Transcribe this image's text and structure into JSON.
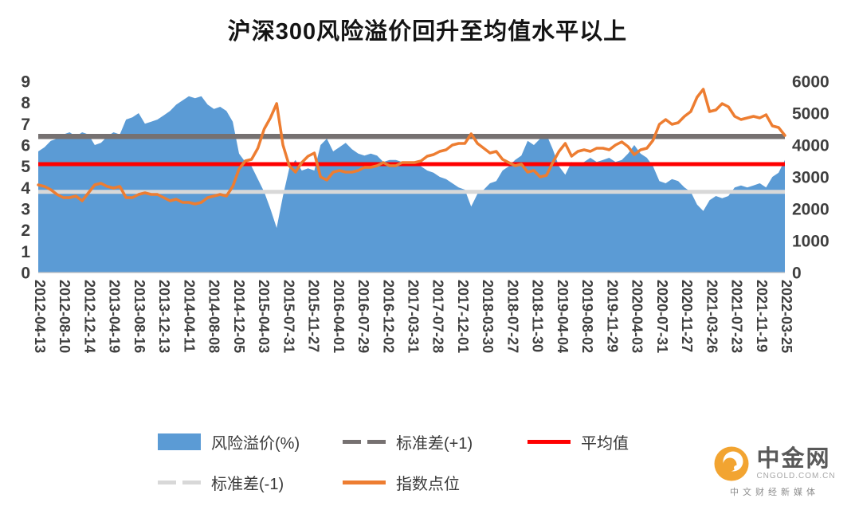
{
  "page": {
    "title": "沪深300风险溢价回升至均值水平以上"
  },
  "chart_data": {
    "type": "combo_area_line",
    "title": "沪深300风险溢价回升至均值水平以上",
    "x_labels": [
      "2012-04-13",
      "2012-08-10",
      "2012-12-14",
      "2013-04-19",
      "2013-08-16",
      "2013-12-13",
      "2014-04-11",
      "2014-08-08",
      "2014-12-05",
      "2015-04-03",
      "2015-07-31",
      "2015-11-27",
      "2016-04-01",
      "2016-07-29",
      "2016-12-02",
      "2017-03-31",
      "2017-07-28",
      "2017-12-01",
      "2018-03-30",
      "2018-07-27",
      "2018-11-30",
      "2019-04-04",
      "2019-08-02",
      "2019-11-29",
      "2020-04-03",
      "2020-07-31",
      "2020-11-27",
      "2021-03-26",
      "2021-07-23",
      "2021-11-19",
      "2022-03-25"
    ],
    "left_axis": {
      "min": 0,
      "max": 9,
      "ticks": [
        "0",
        "1",
        "2",
        "3",
        "4",
        "5",
        "6",
        "7",
        "8",
        "9"
      ]
    },
    "right_axis": {
      "min": 0,
      "max": 6000,
      "ticks": [
        "0",
        "1000",
        "2000",
        "3000",
        "4000",
        "5000",
        "6000"
      ]
    },
    "grid": false,
    "legend_position": "bottom",
    "series": [
      {
        "name": "风险溢价(%)",
        "type": "area",
        "axis": "left",
        "color": "#5B9BD5",
        "values": [
          5.7,
          5.9,
          6.2,
          6.3,
          6.5,
          6.6,
          6.4,
          6.6,
          6.5,
          6.0,
          6.1,
          6.4,
          6.6,
          6.5,
          7.2,
          7.3,
          7.5,
          7.0,
          7.1,
          7.2,
          7.4,
          7.6,
          7.9,
          8.1,
          8.3,
          8.2,
          8.3,
          7.9,
          7.7,
          7.8,
          7.6,
          7.1,
          5.6,
          5.2,
          5.0,
          4.4,
          3.8,
          3.0,
          2.1,
          3.6,
          4.9,
          5.3,
          4.8,
          4.9,
          4.8,
          6.0,
          6.3,
          5.7,
          5.9,
          6.1,
          5.8,
          5.6,
          5.5,
          5.6,
          5.5,
          5.2,
          5.3,
          5.3,
          5.2,
          5.1,
          5.2,
          5.0,
          4.8,
          4.7,
          4.5,
          4.4,
          4.2,
          4.0,
          3.9,
          3.1,
          3.7,
          3.9,
          4.2,
          4.3,
          4.8,
          5.0,
          5.3,
          5.5,
          6.2,
          6.0,
          6.3,
          6.5,
          5.8,
          5.0,
          4.6,
          5.2,
          5.1,
          5.2,
          5.4,
          5.2,
          5.3,
          5.4,
          5.2,
          5.3,
          5.6,
          6.0,
          5.6,
          5.4,
          5.0,
          4.3,
          4.2,
          4.4,
          4.3,
          4.0,
          3.8,
          3.2,
          2.9,
          3.4,
          3.6,
          3.5,
          3.6,
          4.0,
          4.1,
          4.0,
          4.1,
          4.2,
          4.0,
          4.5,
          4.7,
          5.3
        ]
      },
      {
        "name": "指数点位",
        "type": "line",
        "axis": "right",
        "color": "#ED7D31",
        "values": [
          2750,
          2700,
          2600,
          2450,
          2350,
          2350,
          2400,
          2250,
          2500,
          2750,
          2800,
          2700,
          2650,
          2700,
          2350,
          2350,
          2450,
          2500,
          2450,
          2450,
          2350,
          2250,
          2300,
          2200,
          2200,
          2150,
          2200,
          2350,
          2400,
          2450,
          2400,
          2700,
          3250,
          3500,
          3550,
          3900,
          4500,
          4850,
          5300,
          4000,
          3350,
          3150,
          3450,
          3650,
          3750,
          3000,
          2900,
          3150,
          3200,
          3150,
          3150,
          3200,
          3300,
          3300,
          3350,
          3450,
          3350,
          3350,
          3450,
          3450,
          3450,
          3500,
          3650,
          3700,
          3800,
          3850,
          4000,
          4050,
          4050,
          4350,
          4050,
          3900,
          3750,
          3800,
          3550,
          3450,
          3350,
          3400,
          3150,
          3200,
          3000,
          3050,
          3450,
          3800,
          4050,
          3650,
          3800,
          3850,
          3800,
          3900,
          3900,
          3850,
          4000,
          4100,
          3950,
          3700,
          3850,
          3900,
          4150,
          4650,
          4800,
          4650,
          4700,
          4900,
          5050,
          5500,
          5750,
          5050,
          5100,
          5300,
          5200,
          4900,
          4800,
          4850,
          4900,
          4850,
          4950,
          4600,
          4550,
          4300
        ]
      }
    ],
    "reference_lines": [
      {
        "name": "标准差(+1)",
        "axis": "left",
        "value": 6.4,
        "color": "#767171",
        "stroke_width": 6.5
      },
      {
        "name": "平均值",
        "axis": "left",
        "value": 5.1,
        "color": "#FF0000",
        "stroke_width": 5
      },
      {
        "name": "标准差(-1)",
        "axis": "left",
        "value": 3.8,
        "color": "#D8D8D8",
        "stroke_width": 5
      }
    ]
  },
  "legend": {
    "items": [
      {
        "label": "风险溢价(%)",
        "swatch": "area",
        "color": "#5B9BD5"
      },
      {
        "label": "标准差(+1)",
        "swatch": "dash",
        "color": "#767171"
      },
      {
        "label": "平均值",
        "swatch": "line",
        "color": "#FF0000"
      },
      {
        "label": "标准差(-1)",
        "swatch": "dash",
        "color": "#D8D8D8"
      },
      {
        "label": "指数点位",
        "swatch": "line",
        "color": "#ED7D31"
      }
    ]
  },
  "watermark": {
    "brand": "中金网",
    "domain": "CNGOLD.COM.CN",
    "tagline": "中文财经新媒体"
  }
}
